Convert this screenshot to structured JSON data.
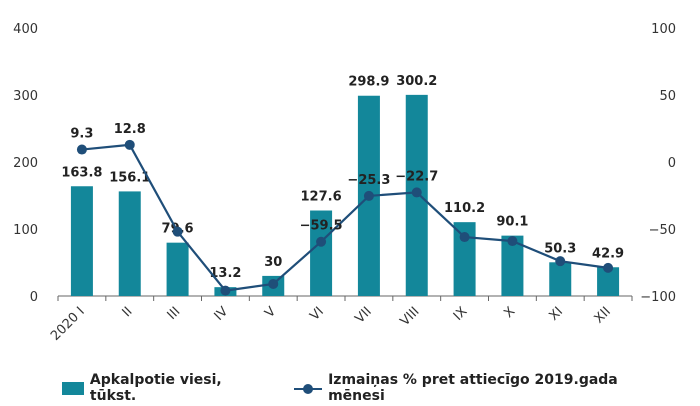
{
  "chart_data": {
    "type": "bar",
    "categories": [
      "2020 I",
      "II",
      "III",
      "IV",
      "V",
      "VI",
      "VII",
      "VIII",
      "IX",
      "X",
      "XI",
      "XII"
    ],
    "series": [
      {
        "name": "Apkalpotie viesi, tūkst.",
        "type": "bar",
        "axis": "left",
        "values": [
          163.8,
          156.1,
          79.6,
          13.2,
          30,
          127.6,
          298.9,
          300.2,
          110.2,
          90.1,
          50.3,
          42.9
        ],
        "labels": [
          "163.8",
          "156.1",
          "79.6",
          "13.2",
          "30",
          "127.6",
          "298.9",
          "300.2",
          "110.2",
          "90.1",
          "50.3",
          "42.9"
        ]
      },
      {
        "name": "Izmaiņas % pret attiecīgo 2019.gada mēnesi",
        "type": "line",
        "axis": "right",
        "values": [
          9.3,
          12.8,
          -52,
          -96,
          -91,
          -59.5,
          -25.3,
          -22.7,
          -56,
          -59,
          -74,
          -79
        ],
        "labels": [
          "9.3",
          "12.8",
          "",
          "",
          "",
          "−59.5",
          "−25.3",
          "−22.7",
          "",
          "",
          "",
          ""
        ]
      }
    ],
    "ylim_left": [
      0,
      400
    ],
    "yticks_left": [
      0,
      100,
      200,
      300,
      400
    ],
    "ylim_right": [
      -100,
      100
    ],
    "yticks_right": [
      -100,
      -50,
      0,
      50,
      100
    ],
    "yticks_right_labels": [
      "−100",
      "−50",
      "0",
      "50",
      "100"
    ],
    "grid": false,
    "legend_position": "bottom",
    "colors": {
      "bar": "#13879a",
      "line": "#1f4e79"
    }
  }
}
